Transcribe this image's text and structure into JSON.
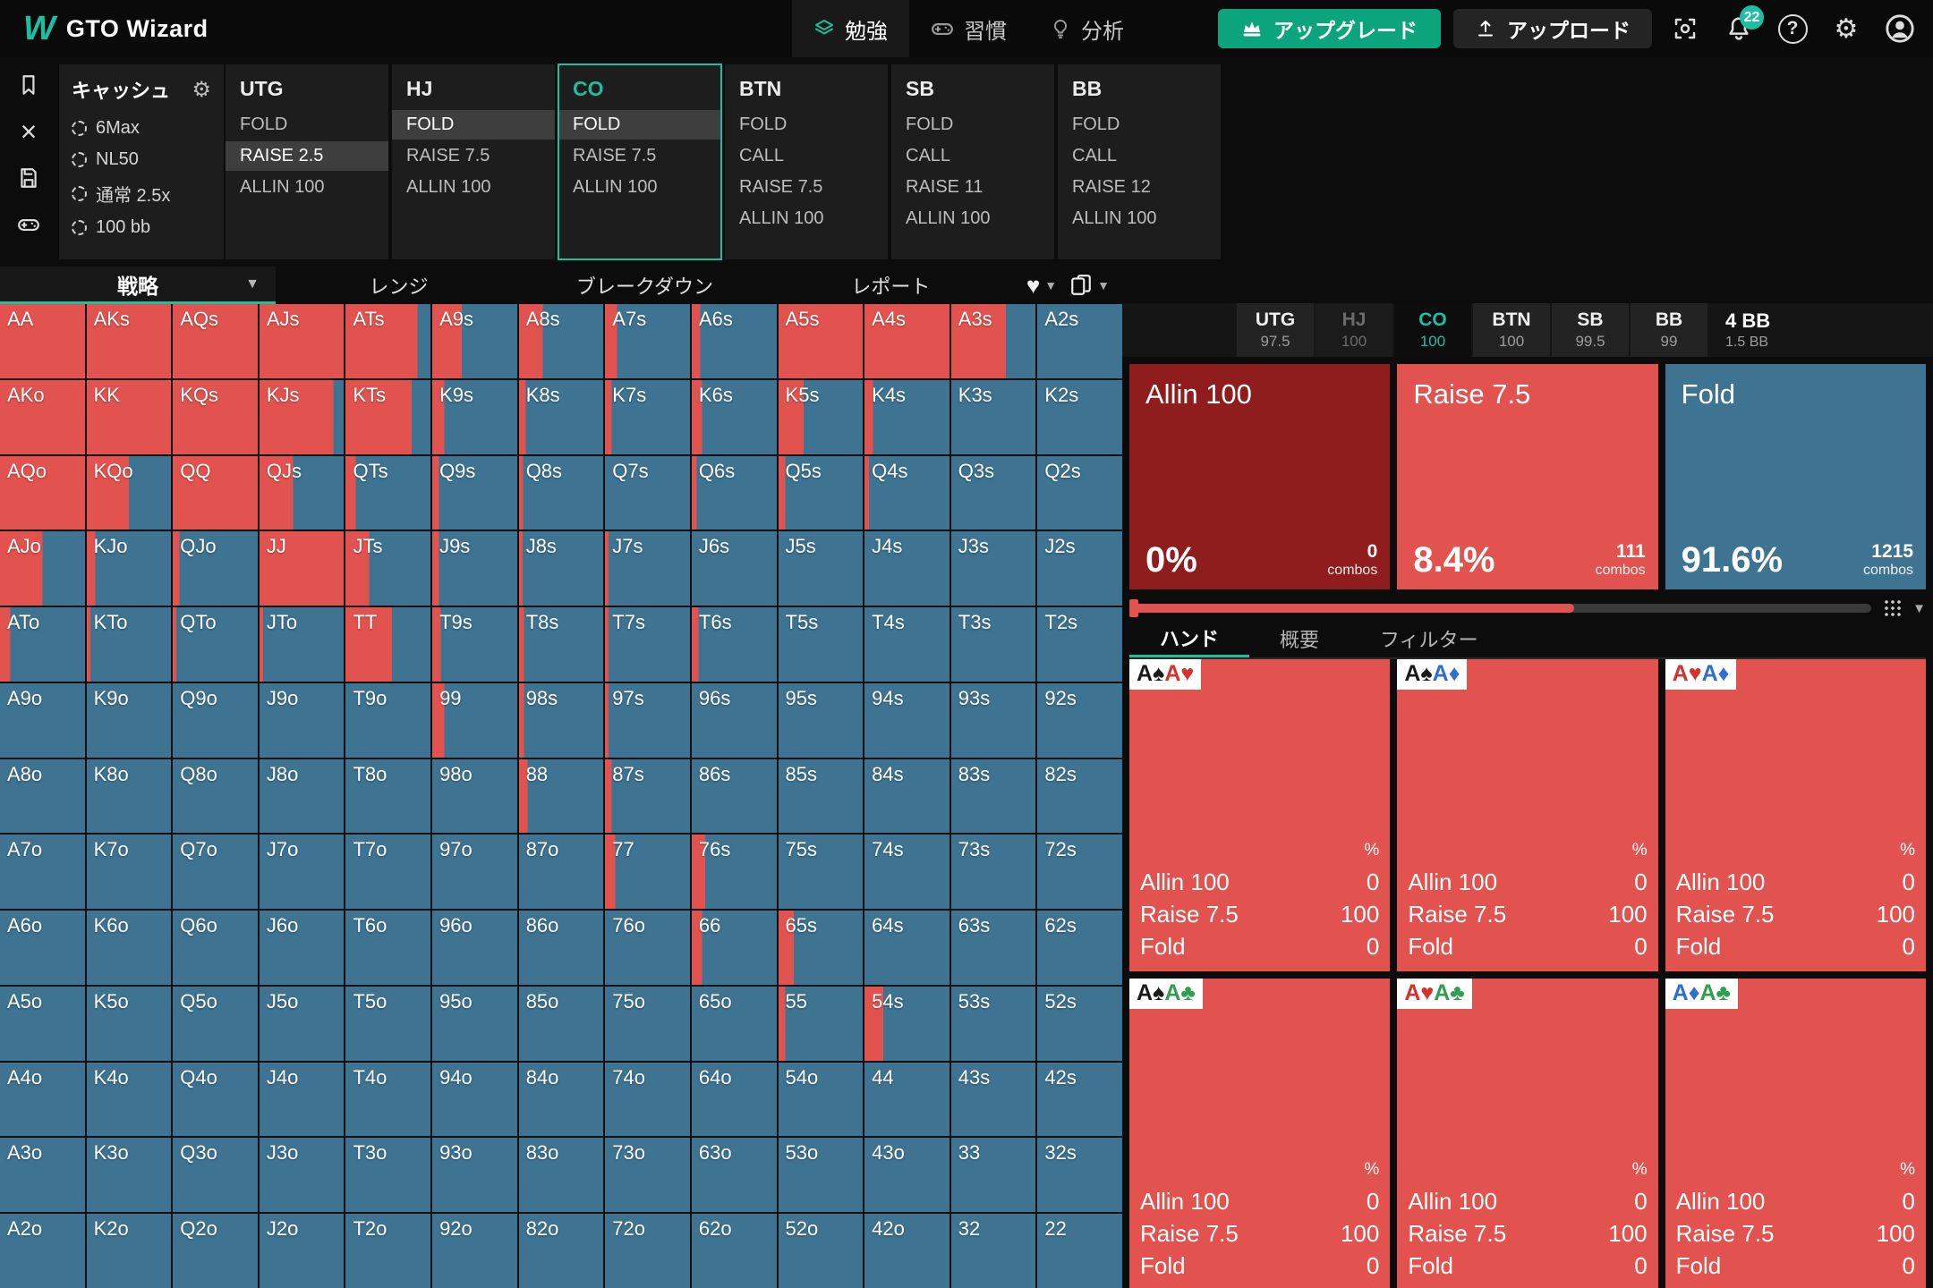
{
  "colors": {
    "accent": "#1dbfa0",
    "raise": "#e2534f",
    "allin": "#8f1d1d",
    "fold": "#3e7392",
    "suit_spade": "#1a1a1a",
    "suit_heart": "#d3322d",
    "suit_diamond": "#2f6fd0",
    "suit_club": "#2e9e4f"
  },
  "nav": {
    "brand": "GTO Wizard",
    "items": [
      {
        "label": "勉強",
        "icon": "layers",
        "active": true
      },
      {
        "label": "習慣",
        "icon": "gamepad",
        "active": false
      },
      {
        "label": "分析",
        "icon": "bulb",
        "active": false
      }
    ],
    "upgrade_label": "アップグレード",
    "upload_label": "アップロード",
    "notification_count": "22"
  },
  "sidebar_icons": [
    "bookmark",
    "close",
    "save",
    "gamepad",
    "compress"
  ],
  "settings": {
    "title": "キャッシュ",
    "items": [
      "6Max",
      "NL50",
      "通常 2.5x",
      "100 bb"
    ]
  },
  "position_panels": [
    {
      "name": "UTG",
      "active": false,
      "actions": [
        {
          "label": "FOLD",
          "selected": false
        },
        {
          "label": "RAISE 2.5",
          "selected": true
        },
        {
          "label": "ALLIN 100",
          "selected": false
        }
      ]
    },
    {
      "name": "HJ",
      "active": false,
      "actions": [
        {
          "label": "FOLD",
          "selected": true
        },
        {
          "label": "RAISE 7.5",
          "selected": false
        },
        {
          "label": "ALLIN 100",
          "selected": false
        }
      ]
    },
    {
      "name": "CO",
      "active": true,
      "actions": [
        {
          "label": "FOLD",
          "selected": true
        },
        {
          "label": "RAISE 7.5",
          "selected": false
        },
        {
          "label": "ALLIN 100",
          "selected": false
        }
      ]
    },
    {
      "name": "BTN",
      "active": false,
      "actions": [
        {
          "label": "FOLD",
          "selected": false
        },
        {
          "label": "CALL",
          "selected": false
        },
        {
          "label": "RAISE 7.5",
          "selected": false
        },
        {
          "label": "ALLIN 100",
          "selected": false
        }
      ]
    },
    {
      "name": "SB",
      "active": false,
      "actions": [
        {
          "label": "FOLD",
          "selected": false
        },
        {
          "label": "CALL",
          "selected": false
        },
        {
          "label": "RAISE 11",
          "selected": false
        },
        {
          "label": "ALLIN 100",
          "selected": false
        }
      ]
    },
    {
      "name": "BB",
      "active": false,
      "actions": [
        {
          "label": "FOLD",
          "selected": false
        },
        {
          "label": "CALL",
          "selected": false
        },
        {
          "label": "RAISE 12",
          "selected": false
        },
        {
          "label": "ALLIN 100",
          "selected": false
        }
      ]
    }
  ],
  "range_tabs": {
    "strategy": {
      "label": "戦略",
      "active": true
    },
    "others": [
      "レンジ",
      "ブレークダウン",
      "レポート"
    ]
  },
  "stack_bar": {
    "positions": [
      {
        "name": "UTG",
        "stack": "97.5",
        "state": "normal"
      },
      {
        "name": "HJ",
        "stack": "100",
        "state": "folded"
      },
      {
        "name": "CO",
        "stack": "100",
        "state": "active"
      },
      {
        "name": "BTN",
        "stack": "100",
        "state": "normal"
      },
      {
        "name": "SB",
        "stack": "99.5",
        "state": "normal"
      },
      {
        "name": "BB",
        "stack": "99",
        "state": "normal"
      }
    ],
    "pot": "4 BB",
    "pot_sub": "1.5 BB"
  },
  "action_summary": [
    {
      "label": "Allin 100",
      "percent": "0%",
      "combos": "0",
      "color": "#8f1d1d"
    },
    {
      "label": "Raise 7.5",
      "percent": "8.4%",
      "combos": "111",
      "color": "#e2534f"
    },
    {
      "label": "Fold",
      "percent": "91.6%",
      "combos": "1215",
      "color": "#3e7392"
    }
  ],
  "combos_label": "combos",
  "slider": {
    "fill_pct": 60
  },
  "hand_panel": {
    "tabs": [
      {
        "label": "ハンド",
        "active": true
      },
      {
        "label": "概要",
        "active": false
      },
      {
        "label": "フィルター",
        "active": false
      }
    ],
    "percent_header": "%",
    "cards": [
      {
        "combo": [
          {
            "rank": "A",
            "suit": "spade"
          },
          {
            "rank": "A",
            "suit": "heart"
          }
        ],
        "actions": [
          {
            "label": "Allin 100",
            "value": "0"
          },
          {
            "label": "Raise 7.5",
            "value": "100"
          },
          {
            "label": "Fold",
            "value": "0"
          }
        ]
      },
      {
        "combo": [
          {
            "rank": "A",
            "suit": "spade"
          },
          {
            "rank": "A",
            "suit": "diamond"
          }
        ],
        "actions": [
          {
            "label": "Allin 100",
            "value": "0"
          },
          {
            "label": "Raise 7.5",
            "value": "100"
          },
          {
            "label": "Fold",
            "value": "0"
          }
        ]
      },
      {
        "combo": [
          {
            "rank": "A",
            "suit": "heart"
          },
          {
            "rank": "A",
            "suit": "diamond"
          }
        ],
        "actions": [
          {
            "label": "Allin 100",
            "value": "0"
          },
          {
            "label": "Raise 7.5",
            "value": "100"
          },
          {
            "label": "Fold",
            "value": "0"
          }
        ]
      },
      {
        "combo": [
          {
            "rank": "A",
            "suit": "spade"
          },
          {
            "rank": "A",
            "suit": "club"
          }
        ],
        "actions": [
          {
            "label": "Allin 100",
            "value": "0"
          },
          {
            "label": "Raise 7.5",
            "value": "100"
          },
          {
            "label": "Fold",
            "value": "0"
          }
        ]
      },
      {
        "combo": [
          {
            "rank": "A",
            "suit": "heart"
          },
          {
            "rank": "A",
            "suit": "club"
          }
        ],
        "actions": [
          {
            "label": "Allin 100",
            "value": "0"
          },
          {
            "label": "Raise 7.5",
            "value": "100"
          },
          {
            "label": "Fold",
            "value": "0"
          }
        ]
      },
      {
        "combo": [
          {
            "rank": "A",
            "suit": "diamond"
          },
          {
            "rank": "A",
            "suit": "club"
          }
        ],
        "actions": [
          {
            "label": "Allin 100",
            "value": "0"
          },
          {
            "label": "Raise 7.5",
            "value": "100"
          },
          {
            "label": "Fold",
            "value": "0"
          }
        ]
      }
    ]
  },
  "chart_data": {
    "type": "heatmap",
    "title": "CO preflop strategy matrix (red = Raise 7.5 frequency, blue = Fold)",
    "legend": [
      {
        "action": "Raise 7.5",
        "color": "#e2534f"
      },
      {
        "action": "Fold",
        "color": "#3e7392"
      }
    ],
    "hand_labels": [
      [
        "AA",
        "AKs",
        "AQs",
        "AJs",
        "ATs",
        "A9s",
        "A8s",
        "A7s",
        "A6s",
        "A5s",
        "A4s",
        "A3s",
        "A2s"
      ],
      [
        "AKo",
        "KK",
        "KQs",
        "KJs",
        "KTs",
        "K9s",
        "K8s",
        "K7s",
        "K6s",
        "K5s",
        "K4s",
        "K3s",
        "K2s"
      ],
      [
        "AQo",
        "KQo",
        "QQ",
        "QJs",
        "QTs",
        "Q9s",
        "Q8s",
        "Q7s",
        "Q6s",
        "Q5s",
        "Q4s",
        "Q3s",
        "Q2s"
      ],
      [
        "AJo",
        "KJo",
        "QJo",
        "JJ",
        "JTs",
        "J9s",
        "J8s",
        "J7s",
        "J6s",
        "J5s",
        "J4s",
        "J3s",
        "J2s"
      ],
      [
        "ATo",
        "KTo",
        "QTo",
        "JTo",
        "TT",
        "T9s",
        "T8s",
        "T7s",
        "T6s",
        "T5s",
        "T4s",
        "T3s",
        "T2s"
      ],
      [
        "A9o",
        "K9o",
        "Q9o",
        "J9o",
        "T9o",
        "99",
        "98s",
        "97s",
        "96s",
        "95s",
        "94s",
        "93s",
        "92s"
      ],
      [
        "A8o",
        "K8o",
        "Q8o",
        "J8o",
        "T8o",
        "98o",
        "88",
        "87s",
        "86s",
        "85s",
        "84s",
        "83s",
        "82s"
      ],
      [
        "A7o",
        "K7o",
        "Q7o",
        "J7o",
        "T7o",
        "97o",
        "87o",
        "77",
        "76s",
        "75s",
        "74s",
        "73s",
        "72s"
      ],
      [
        "A6o",
        "K6o",
        "Q6o",
        "J6o",
        "T6o",
        "96o",
        "86o",
        "76o",
        "66",
        "65s",
        "64s",
        "63s",
        "62s"
      ],
      [
        "A5o",
        "K5o",
        "Q5o",
        "J5o",
        "T5o",
        "95o",
        "85o",
        "75o",
        "65o",
        "55",
        "54s",
        "53s",
        "52s"
      ],
      [
        "A4o",
        "K4o",
        "Q4o",
        "J4o",
        "T4o",
        "94o",
        "84o",
        "74o",
        "64o",
        "54o",
        "44",
        "43s",
        "42s"
      ],
      [
        "A3o",
        "K3o",
        "Q3o",
        "J3o",
        "T3o",
        "93o",
        "83o",
        "73o",
        "63o",
        "53o",
        "43o",
        "33",
        "32s"
      ],
      [
        "A2o",
        "K2o",
        "Q2o",
        "J2o",
        "T2o",
        "92o",
        "82o",
        "72o",
        "62o",
        "52o",
        "42o",
        "32",
        "22"
      ]
    ],
    "raise_pct": [
      [
        100,
        100,
        100,
        100,
        85,
        35,
        28,
        14,
        10,
        100,
        100,
        65,
        0
      ],
      [
        100,
        100,
        100,
        88,
        78,
        14,
        8,
        8,
        12,
        30,
        10,
        0,
        0
      ],
      [
        100,
        50,
        100,
        40,
        12,
        8,
        5,
        0,
        6,
        8,
        5,
        0,
        0
      ],
      [
        50,
        10,
        8,
        100,
        28,
        8,
        4,
        4,
        0,
        0,
        0,
        0,
        0
      ],
      [
        12,
        4,
        4,
        4,
        55,
        10,
        6,
        4,
        8,
        0,
        0,
        0,
        0
      ],
      [
        0,
        0,
        0,
        0,
        0,
        14,
        6,
        4,
        0,
        0,
        0,
        0,
        0
      ],
      [
        0,
        0,
        0,
        0,
        0,
        0,
        10,
        8,
        0,
        0,
        0,
        0,
        0
      ],
      [
        0,
        0,
        0,
        0,
        0,
        0,
        0,
        12,
        16,
        0,
        0,
        0,
        0
      ],
      [
        0,
        0,
        0,
        0,
        0,
        0,
        0,
        0,
        12,
        18,
        0,
        0,
        0
      ],
      [
        0,
        0,
        0,
        0,
        0,
        0,
        0,
        0,
        0,
        8,
        22,
        0,
        0
      ],
      [
        0,
        0,
        0,
        0,
        0,
        0,
        0,
        0,
        0,
        0,
        0,
        0,
        0
      ],
      [
        0,
        0,
        0,
        0,
        0,
        0,
        0,
        0,
        0,
        0,
        0,
        0,
        0
      ],
      [
        0,
        0,
        0,
        0,
        0,
        0,
        0,
        0,
        0,
        0,
        0,
        0,
        0
      ]
    ]
  }
}
